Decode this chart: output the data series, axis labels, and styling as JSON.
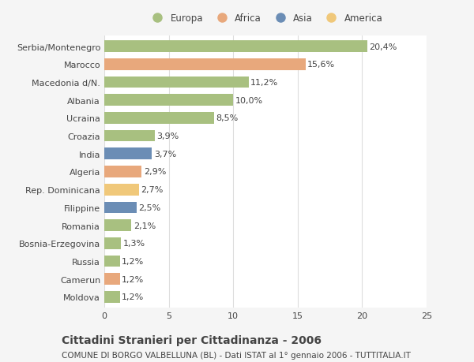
{
  "categories": [
    "Moldova",
    "Camerun",
    "Russia",
    "Bosnia-Erzegovina",
    "Romania",
    "Filippine",
    "Rep. Dominicana",
    "Algeria",
    "India",
    "Croazia",
    "Ucraina",
    "Albania",
    "Macedonia d/N.",
    "Marocco",
    "Serbia/Montenegro"
  ],
  "values": [
    1.2,
    1.2,
    1.2,
    1.3,
    2.1,
    2.5,
    2.7,
    2.9,
    3.7,
    3.9,
    8.5,
    10.0,
    11.2,
    15.6,
    20.4
  ],
  "labels": [
    "1,2%",
    "1,2%",
    "1,2%",
    "1,3%",
    "2,1%",
    "2,5%",
    "2,7%",
    "2,9%",
    "3,7%",
    "3,9%",
    "8,5%",
    "10,0%",
    "11,2%",
    "15,6%",
    "20,4%"
  ],
  "colors": [
    "#a8c080",
    "#e8a87c",
    "#a8c080",
    "#a8c080",
    "#a8c080",
    "#6b8db5",
    "#f0c87a",
    "#e8a87c",
    "#6b8db5",
    "#a8c080",
    "#a8c080",
    "#a8c080",
    "#a8c080",
    "#e8a87c",
    "#a8c080"
  ],
  "legend_labels": [
    "Europa",
    "Africa",
    "Asia",
    "America"
  ],
  "legend_colors": [
    "#a8c080",
    "#e8a87c",
    "#6b8db5",
    "#f0c87a"
  ],
  "title": "Cittadini Stranieri per Cittadinanza - 2006",
  "subtitle": "COMUNE DI BORGO VALBELLUNA (BL) - Dati ISTAT al 1° gennaio 2006 - TUTTITALIA.IT",
  "xlim": [
    0,
    25
  ],
  "xticks": [
    0,
    5,
    10,
    15,
    20,
    25
  ],
  "background_color": "#f5f5f5",
  "bar_background": "#ffffff",
  "grid_color": "#dddddd",
  "text_color": "#444444",
  "label_fontsize": 8,
  "tick_fontsize": 8,
  "title_fontsize": 10,
  "subtitle_fontsize": 7.5,
  "bar_height": 0.65
}
